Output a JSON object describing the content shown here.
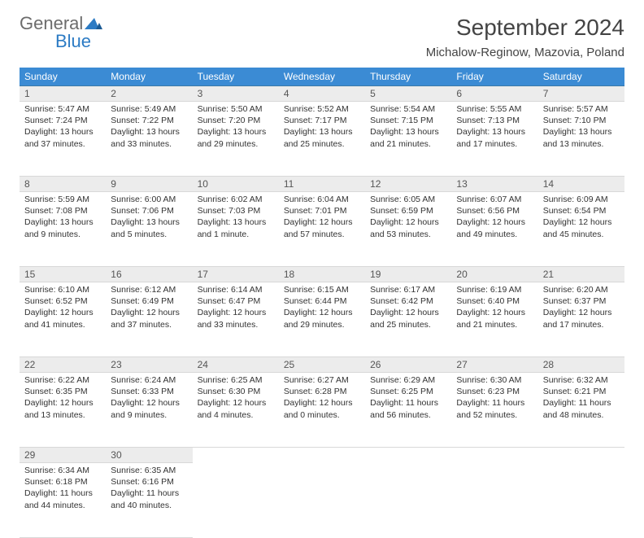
{
  "logo": {
    "general": "General",
    "blue": "Blue"
  },
  "title": "September 2024",
  "location": "Michalow-Reginow, Mazovia, Poland",
  "colors": {
    "header_bg": "#3b8bd4",
    "header_text": "#ffffff",
    "row_border": "#3b7aa8",
    "daynum_bg": "#ececec",
    "text": "#333333"
  },
  "weekdays": [
    "Sunday",
    "Monday",
    "Tuesday",
    "Wednesday",
    "Thursday",
    "Friday",
    "Saturday"
  ],
  "weeks": [
    [
      {
        "day": 1,
        "sunrise": "5:47 AM",
        "sunset": "7:24 PM",
        "daylight": "13 hours and 37 minutes."
      },
      {
        "day": 2,
        "sunrise": "5:49 AM",
        "sunset": "7:22 PM",
        "daylight": "13 hours and 33 minutes."
      },
      {
        "day": 3,
        "sunrise": "5:50 AM",
        "sunset": "7:20 PM",
        "daylight": "13 hours and 29 minutes."
      },
      {
        "day": 4,
        "sunrise": "5:52 AM",
        "sunset": "7:17 PM",
        "daylight": "13 hours and 25 minutes."
      },
      {
        "day": 5,
        "sunrise": "5:54 AM",
        "sunset": "7:15 PM",
        "daylight": "13 hours and 21 minutes."
      },
      {
        "day": 6,
        "sunrise": "5:55 AM",
        "sunset": "7:13 PM",
        "daylight": "13 hours and 17 minutes."
      },
      {
        "day": 7,
        "sunrise": "5:57 AM",
        "sunset": "7:10 PM",
        "daylight": "13 hours and 13 minutes."
      }
    ],
    [
      {
        "day": 8,
        "sunrise": "5:59 AM",
        "sunset": "7:08 PM",
        "daylight": "13 hours and 9 minutes."
      },
      {
        "day": 9,
        "sunrise": "6:00 AM",
        "sunset": "7:06 PM",
        "daylight": "13 hours and 5 minutes."
      },
      {
        "day": 10,
        "sunrise": "6:02 AM",
        "sunset": "7:03 PM",
        "daylight": "13 hours and 1 minute."
      },
      {
        "day": 11,
        "sunrise": "6:04 AM",
        "sunset": "7:01 PM",
        "daylight": "12 hours and 57 minutes."
      },
      {
        "day": 12,
        "sunrise": "6:05 AM",
        "sunset": "6:59 PM",
        "daylight": "12 hours and 53 minutes."
      },
      {
        "day": 13,
        "sunrise": "6:07 AM",
        "sunset": "6:56 PM",
        "daylight": "12 hours and 49 minutes."
      },
      {
        "day": 14,
        "sunrise": "6:09 AM",
        "sunset": "6:54 PM",
        "daylight": "12 hours and 45 minutes."
      }
    ],
    [
      {
        "day": 15,
        "sunrise": "6:10 AM",
        "sunset": "6:52 PM",
        "daylight": "12 hours and 41 minutes."
      },
      {
        "day": 16,
        "sunrise": "6:12 AM",
        "sunset": "6:49 PM",
        "daylight": "12 hours and 37 minutes."
      },
      {
        "day": 17,
        "sunrise": "6:14 AM",
        "sunset": "6:47 PM",
        "daylight": "12 hours and 33 minutes."
      },
      {
        "day": 18,
        "sunrise": "6:15 AM",
        "sunset": "6:44 PM",
        "daylight": "12 hours and 29 minutes."
      },
      {
        "day": 19,
        "sunrise": "6:17 AM",
        "sunset": "6:42 PM",
        "daylight": "12 hours and 25 minutes."
      },
      {
        "day": 20,
        "sunrise": "6:19 AM",
        "sunset": "6:40 PM",
        "daylight": "12 hours and 21 minutes."
      },
      {
        "day": 21,
        "sunrise": "6:20 AM",
        "sunset": "6:37 PM",
        "daylight": "12 hours and 17 minutes."
      }
    ],
    [
      {
        "day": 22,
        "sunrise": "6:22 AM",
        "sunset": "6:35 PM",
        "daylight": "12 hours and 13 minutes."
      },
      {
        "day": 23,
        "sunrise": "6:24 AM",
        "sunset": "6:33 PM",
        "daylight": "12 hours and 9 minutes."
      },
      {
        "day": 24,
        "sunrise": "6:25 AM",
        "sunset": "6:30 PM",
        "daylight": "12 hours and 4 minutes."
      },
      {
        "day": 25,
        "sunrise": "6:27 AM",
        "sunset": "6:28 PM",
        "daylight": "12 hours and 0 minutes."
      },
      {
        "day": 26,
        "sunrise": "6:29 AM",
        "sunset": "6:25 PM",
        "daylight": "11 hours and 56 minutes."
      },
      {
        "day": 27,
        "sunrise": "6:30 AM",
        "sunset": "6:23 PM",
        "daylight": "11 hours and 52 minutes."
      },
      {
        "day": 28,
        "sunrise": "6:32 AM",
        "sunset": "6:21 PM",
        "daylight": "11 hours and 48 minutes."
      }
    ],
    [
      {
        "day": 29,
        "sunrise": "6:34 AM",
        "sunset": "6:18 PM",
        "daylight": "11 hours and 44 minutes."
      },
      {
        "day": 30,
        "sunrise": "6:35 AM",
        "sunset": "6:16 PM",
        "daylight": "11 hours and 40 minutes."
      },
      null,
      null,
      null,
      null,
      null
    ]
  ],
  "labels": {
    "sunrise": "Sunrise:",
    "sunset": "Sunset:",
    "daylight": "Daylight:"
  }
}
